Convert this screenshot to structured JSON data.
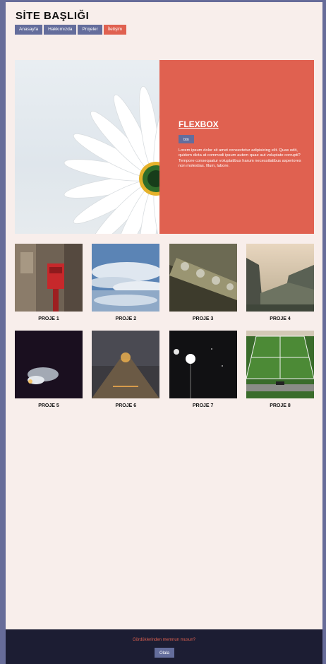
{
  "site": {
    "title": "SİTE BAŞLIĞI"
  },
  "nav": {
    "items": [
      {
        "label": "Anasayfa"
      },
      {
        "label": "Hakkımızda"
      },
      {
        "label": "Projeler"
      },
      {
        "label": "İletişim"
      }
    ],
    "active_index": 3
  },
  "hero": {
    "title": "FLEXBOX",
    "button_label": "btn",
    "text": "Lorem ipsum dolor sit amet consectetur adipisicing elit. Quas odit, quidem dicta at commodi ipsum autem quae aut voluptate corrupti? Tempore consequatur voluptatibus harum necessitatibus asperiores non molestias. Illum, labore."
  },
  "projects": [
    {
      "label": "PROJE 1"
    },
    {
      "label": "PROJE 2"
    },
    {
      "label": "PROJE 3"
    },
    {
      "label": "PROJE 4"
    },
    {
      "label": "PROJE 5"
    },
    {
      "label": "PROJE 6"
    },
    {
      "label": "PROJE 7"
    },
    {
      "label": "PROJE 8"
    }
  ],
  "footer": {
    "question": "Gördüklerinden memnun musun?",
    "button_label": "Olala"
  },
  "colors": {
    "accent": "#e06150",
    "primary": "#646d9c",
    "page_bg": "#f8eeeb",
    "footer_bg": "#1c1d33"
  }
}
